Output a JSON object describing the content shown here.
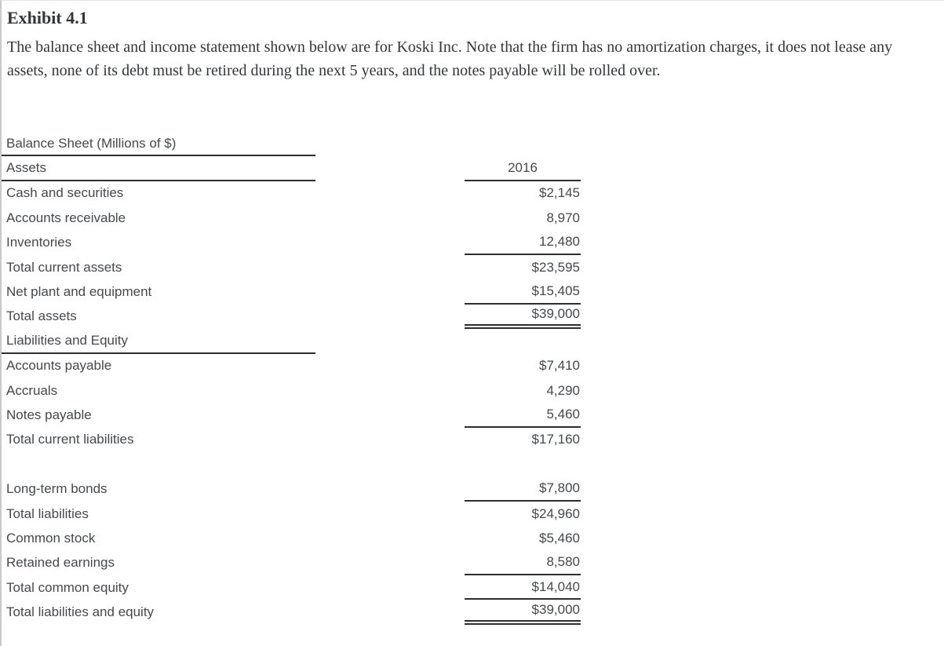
{
  "exhibit": {
    "title": "Exhibit 4.1",
    "description": "The balance sheet and income statement shown below are for Koski Inc. Note that the firm has no amortization charges, it does not lease any assets, none of its debt must be retired during the next 5 years, and the notes payable will be rolled over."
  },
  "balance_sheet": {
    "title": "Balance Sheet (Millions of $)",
    "assets_header": "Assets",
    "year_header": "2016",
    "rows": [
      {
        "label": "Cash and securities",
        "value": "$2,145",
        "label_line": "none",
        "value_line": "none"
      },
      {
        "label": "Accounts receivable",
        "value": "8,970",
        "label_line": "none",
        "value_line": "none"
      },
      {
        "label": "Inventories",
        "value": "12,480",
        "label_line": "none",
        "value_line": "single"
      },
      {
        "label": "Total current assets",
        "value": "$23,595",
        "label_line": "none",
        "value_line": "none"
      },
      {
        "label": "Net plant and equipment",
        "value": "$15,405",
        "label_line": "none",
        "value_line": "single"
      },
      {
        "label": "Total assets",
        "value": "$39,000",
        "label_line": "none",
        "value_line": "double"
      },
      {
        "label": "Liabilities and Equity",
        "value": "",
        "label_line": "single",
        "value_line": "none"
      },
      {
        "label": "Accounts payable",
        "value": "$7,410",
        "label_line": "none",
        "value_line": "none"
      },
      {
        "label": "Accruals",
        "value": "4,290",
        "label_line": "none",
        "value_line": "none"
      },
      {
        "label": "Notes payable",
        "value": "5,460",
        "label_line": "none",
        "value_line": "single"
      },
      {
        "label": "Total current liabilities",
        "value": "$17,160",
        "label_line": "none",
        "value_line": "none"
      },
      {
        "label": "",
        "value": "",
        "label_line": "none",
        "value_line": "none"
      },
      {
        "label": "Long-term bonds",
        "value": "$7,800",
        "label_line": "none",
        "value_line": "single"
      },
      {
        "label": "Total liabilities",
        "value": "$24,960",
        "label_line": "none",
        "value_line": "none"
      },
      {
        "label": "Common stock",
        "value": "$5,460",
        "label_line": "none",
        "value_line": "none"
      },
      {
        "label": "Retained earnings",
        "value": "8,580",
        "label_line": "none",
        "value_line": "single"
      },
      {
        "label": "Total common equity",
        "value": "$14,040",
        "label_line": "none",
        "value_line": "single"
      },
      {
        "label": "Total liabilities and equity",
        "value": "$39,000",
        "label_line": "none",
        "value_line": "double"
      }
    ],
    "colors": {
      "rule": "#2e2e2e",
      "table_text": "#45484c",
      "header_text": "#33363a",
      "page_border": "#c9c9c9"
    }
  }
}
